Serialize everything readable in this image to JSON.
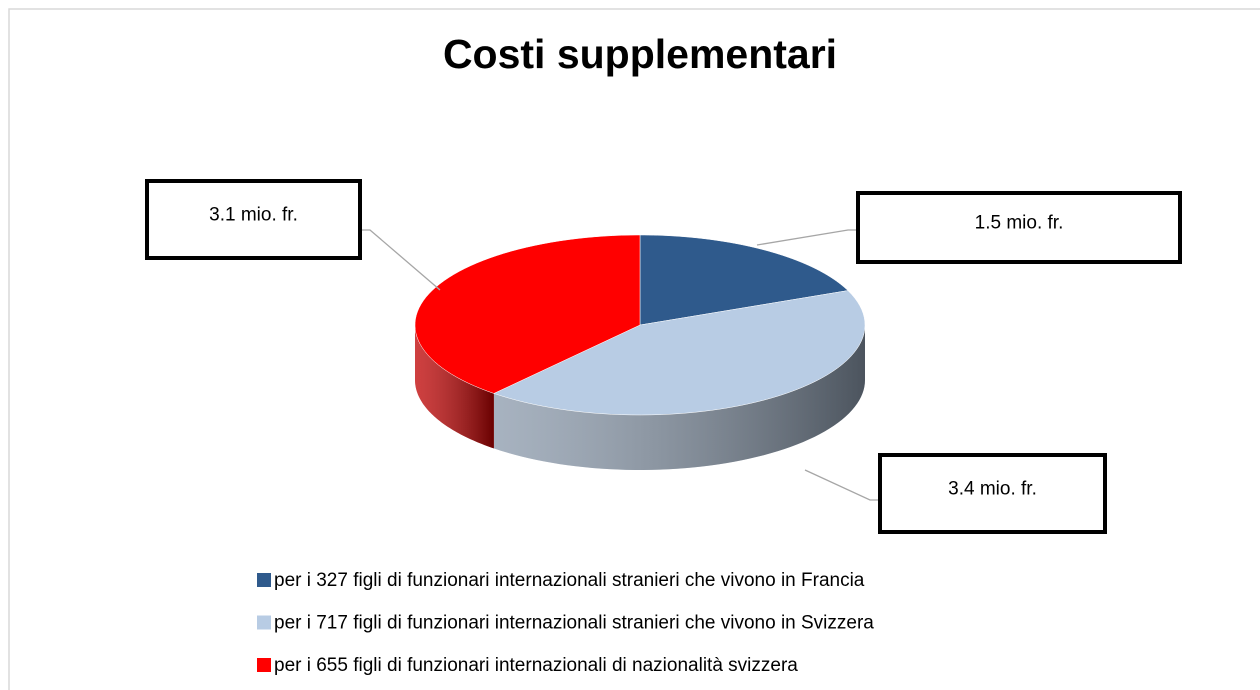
{
  "chart_data": {
    "type": "pie",
    "title": "Costi supplementari",
    "categories": [
      "per i 327 figli di funzionari internazionali stranieri che vivono in Francia",
      "per i 717 figli di funzionari internazionali stranieri che vivono in Svizzera",
      "per i 655 figli di funzionari internazionali di nazionalità svizzera"
    ],
    "values": [
      1.5,
      3.4,
      3.1
    ],
    "value_labels": [
      "1.5 mio. fr.",
      "3.4 mio. fr.",
      "3.1 mio. fr."
    ],
    "colors": [
      "#2f5a8c",
      "#b8cce4",
      "#ff0000"
    ],
    "legend": "bottom"
  }
}
